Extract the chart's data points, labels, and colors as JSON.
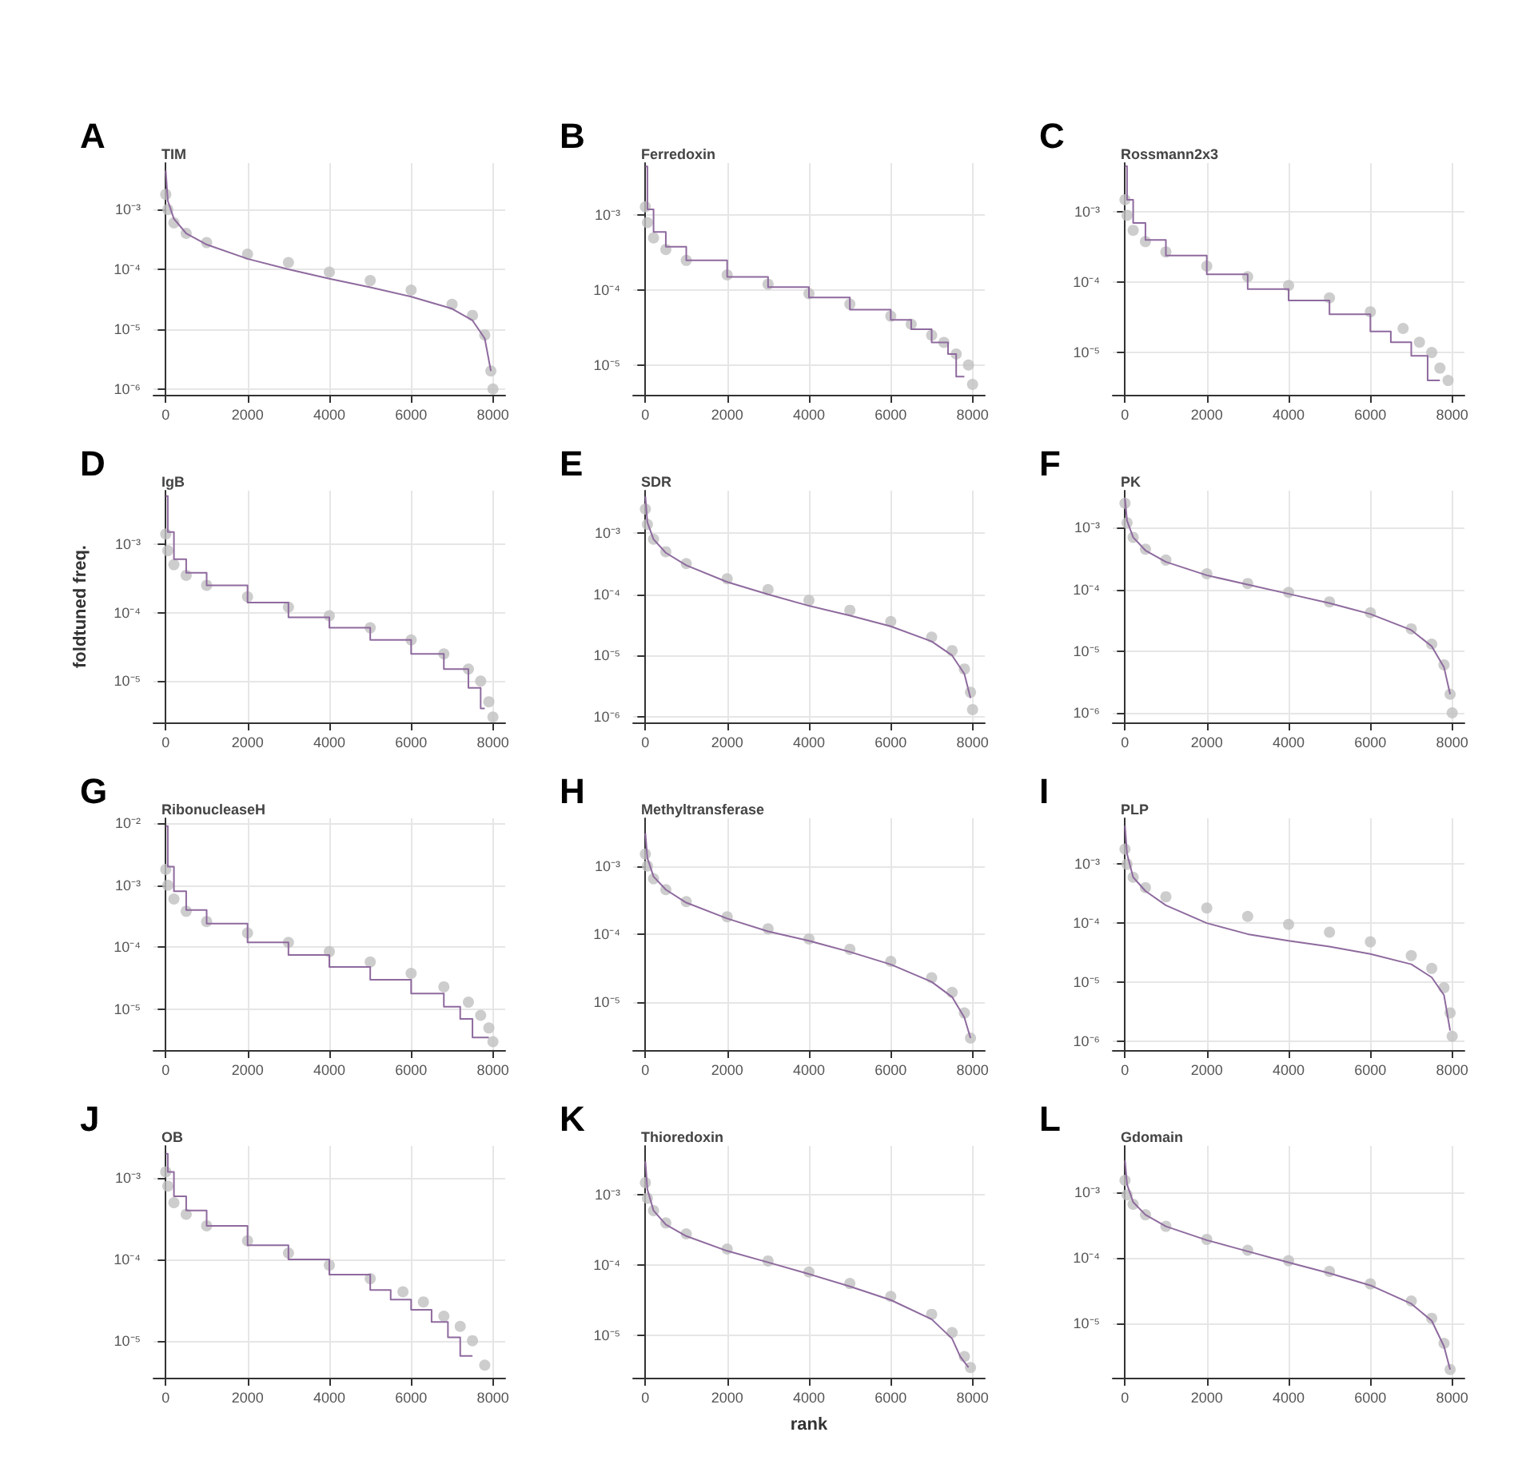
{
  "chart_data": [
    {
      "type": "scatter",
      "title": "TIM",
      "annotations": [
        "A"
      ],
      "xlim": [
        -300,
        8300
      ],
      "xticks": [
        0,
        2000,
        4000,
        6000,
        8000
      ],
      "ylim": [
        8e-07,
        0.006
      ],
      "yticks": [
        {
          "value": 0.001,
          "label": "10⁻³"
        },
        {
          "value": 0.0001,
          "label": "10⁻⁴"
        },
        {
          "value": 1e-05,
          "label": "10⁻⁵"
        },
        {
          "value": 1e-06,
          "label": "10⁻⁶"
        }
      ],
      "log": "y",
      "grid": true,
      "series": [
        {
          "type": "scatter",
          "marker": "circle",
          "color": "#c0c0c0",
          "x": [
            0,
            50,
            200,
            500,
            1000,
            2000,
            3000,
            4000,
            5000,
            6000,
            7000,
            7500,
            7800,
            7950,
            8000
          ],
          "values": [
            0.0018,
            0.001,
            0.0006,
            0.0004,
            0.00028,
            0.00018,
            0.00013,
            9e-05,
            6.5e-05,
            4.5e-05,
            2.6e-05,
            1.7e-05,
            8e-06,
            2e-06,
            1e-06
          ]
        },
        {
          "type": "line",
          "marker": "none",
          "color": "#8e6a9e",
          "x": [
            0,
            50,
            200,
            500,
            1000,
            2000,
            3000,
            4000,
            5000,
            6000,
            7000,
            7500,
            7800,
            7950
          ],
          "values": [
            0.0045,
            0.0014,
            0.0007,
            0.0004,
            0.00026,
            0.00015,
            0.0001,
            7e-05,
            5e-05,
            3.5e-05,
            2.2e-05,
            1.4e-05,
            7e-06,
            2e-06
          ]
        }
      ]
    },
    {
      "type": "scatter",
      "title": "Ferredoxin",
      "annotations": [
        "B"
      ],
      "xlim": [
        -300,
        8300
      ],
      "xticks": [
        0,
        2000,
        4000,
        6000,
        8000
      ],
      "ylim": [
        4e-06,
        0.005
      ],
      "yticks": [
        {
          "value": 0.001,
          "label": "10⁻³"
        },
        {
          "value": 0.0001,
          "label": "10⁻⁴"
        },
        {
          "value": 1e-05,
          "label": "10⁻⁵"
        }
      ],
      "log": "y",
      "grid": true,
      "series": [
        {
          "type": "scatter",
          "marker": "circle",
          "color": "#c0c0c0",
          "x": [
            0,
            50,
            200,
            500,
            1000,
            2000,
            3000,
            4000,
            5000,
            6000,
            6500,
            7000,
            7300,
            7600,
            7900,
            8000
          ],
          "values": [
            0.0013,
            0.0008,
            0.0005,
            0.00035,
            0.00025,
            0.00016,
            0.00012,
            9e-05,
            6.5e-05,
            4.5e-05,
            3.5e-05,
            2.5e-05,
            2e-05,
            1.4e-05,
            1e-05,
            5.5e-06
          ]
        },
        {
          "type": "step",
          "marker": "none",
          "color": "#8e6a9e",
          "x": [
            0,
            50,
            200,
            500,
            1000,
            2000,
            3000,
            4000,
            5000,
            6000,
            6500,
            7000,
            7400,
            7600,
            7800
          ],
          "values": [
            0.0045,
            0.0012,
            0.0006,
            0.00038,
            0.00025,
            0.00015,
            0.00011,
            8e-05,
            5.5e-05,
            4e-05,
            3e-05,
            2e-05,
            1.4e-05,
            7e-06,
            7e-06
          ]
        }
      ]
    },
    {
      "type": "scatter",
      "title": "Rossmann2x3",
      "annotations": [
        "C"
      ],
      "xlim": [
        -300,
        8300
      ],
      "xticks": [
        0,
        2000,
        4000,
        6000,
        8000
      ],
      "ylim": [
        2.5e-06,
        0.005
      ],
      "yticks": [
        {
          "value": 0.001,
          "label": "10⁻³"
        },
        {
          "value": 0.0001,
          "label": "10⁻⁴"
        },
        {
          "value": 1e-05,
          "label": "10⁻⁵"
        }
      ],
      "log": "y",
      "grid": true,
      "series": [
        {
          "type": "scatter",
          "marker": "circle",
          "color": "#c0c0c0",
          "x": [
            0,
            50,
            200,
            500,
            1000,
            2000,
            3000,
            4000,
            5000,
            6000,
            6800,
            7200,
            7500,
            7700,
            7900
          ],
          "values": [
            0.0015,
            0.0009,
            0.00055,
            0.00038,
            0.00027,
            0.00017,
            0.00012,
            9e-05,
            6e-05,
            3.8e-05,
            2.2e-05,
            1.4e-05,
            1e-05,
            6e-06,
            4e-06
          ]
        },
        {
          "type": "step",
          "marker": "none",
          "color": "#8e6a9e",
          "x": [
            0,
            50,
            200,
            500,
            1000,
            2000,
            3000,
            4000,
            5000,
            6000,
            6500,
            7000,
            7400,
            7700
          ],
          "values": [
            0.0045,
            0.0015,
            0.0007,
            0.0004,
            0.00024,
            0.00013,
            8e-05,
            5.5e-05,
            3.5e-05,
            2e-05,
            1.4e-05,
            9e-06,
            4e-06,
            4e-06
          ]
        }
      ]
    },
    {
      "type": "scatter",
      "title": "IgB",
      "ylabel": "foldtuned freq.",
      "annotations": [
        "D"
      ],
      "xlim": [
        -300,
        8300
      ],
      "xticks": [
        0,
        2000,
        4000,
        6000,
        8000
      ],
      "ylim": [
        2.5e-06,
        0.006
      ],
      "yticks": [
        {
          "value": 0.001,
          "label": "10⁻³"
        },
        {
          "value": 0.0001,
          "label": "10⁻⁴"
        },
        {
          "value": 1e-05,
          "label": "10⁻⁵"
        }
      ],
      "log": "y",
      "grid": true,
      "series": [
        {
          "type": "scatter",
          "marker": "circle",
          "color": "#c0c0c0",
          "x": [
            0,
            50,
            200,
            500,
            1000,
            2000,
            3000,
            4000,
            5000,
            6000,
            6800,
            7400,
            7700,
            7900,
            8000
          ],
          "values": [
            0.0014,
            0.0008,
            0.0005,
            0.00035,
            0.00025,
            0.00017,
            0.00012,
            9e-05,
            6e-05,
            4e-05,
            2.5e-05,
            1.5e-05,
            1e-05,
            5e-06,
            3e-06
          ]
        },
        {
          "type": "step",
          "marker": "none",
          "color": "#8e6a9e",
          "x": [
            0,
            50,
            200,
            500,
            1000,
            2000,
            3000,
            4000,
            5000,
            6000,
            6800,
            7400,
            7700,
            7800
          ],
          "values": [
            0.005,
            0.0015,
            0.0006,
            0.00038,
            0.00025,
            0.00014,
            8.5e-05,
            6e-05,
            4e-05,
            2.5e-05,
            1.5e-05,
            8e-06,
            4e-06,
            4e-06
          ]
        }
      ]
    },
    {
      "type": "scatter",
      "title": "SDR",
      "annotations": [
        "E"
      ],
      "xlim": [
        -300,
        8300
      ],
      "xticks": [
        0,
        2000,
        4000,
        6000,
        8000
      ],
      "ylim": [
        8e-07,
        0.005
      ],
      "yticks": [
        {
          "value": 0.001,
          "label": "10⁻³"
        },
        {
          "value": 0.0001,
          "label": "10⁻⁴"
        },
        {
          "value": 1e-05,
          "label": "10⁻⁵"
        },
        {
          "value": 1e-06,
          "label": "10⁻⁶"
        }
      ],
      "log": "y",
      "grid": true,
      "series": [
        {
          "type": "scatter",
          "marker": "circle",
          "color": "#c0c0c0",
          "x": [
            0,
            50,
            200,
            500,
            1000,
            2000,
            3000,
            4000,
            5000,
            6000,
            7000,
            7500,
            7800,
            7950,
            8000
          ],
          "values": [
            0.0025,
            0.0014,
            0.0008,
            0.0005,
            0.00032,
            0.00018,
            0.00012,
            8e-05,
            5.5e-05,
            3.6e-05,
            2e-05,
            1.2e-05,
            6e-06,
            2.5e-06,
            1.3e-06
          ]
        },
        {
          "type": "line",
          "marker": "none",
          "color": "#8e6a9e",
          "x": [
            0,
            50,
            200,
            500,
            1000,
            2000,
            3000,
            4000,
            5000,
            6000,
            7000,
            7500,
            7800,
            7950
          ],
          "values": [
            0.004,
            0.0015,
            0.0008,
            0.00048,
            0.0003,
            0.00016,
            0.0001,
            6.5e-05,
            4.5e-05,
            3e-05,
            1.7e-05,
            1e-05,
            5e-06,
            2e-06
          ]
        }
      ]
    },
    {
      "type": "scatter",
      "title": "PK",
      "annotations": [
        "F"
      ],
      "xlim": [
        -300,
        8300
      ],
      "xticks": [
        0,
        2000,
        4000,
        6000,
        8000
      ],
      "ylim": [
        7e-07,
        0.004
      ],
      "yticks": [
        {
          "value": 0.001,
          "label": "10⁻³"
        },
        {
          "value": 0.0001,
          "label": "10⁻⁴"
        },
        {
          "value": 1e-05,
          "label": "10⁻⁵"
        },
        {
          "value": 1e-06,
          "label": "10⁻⁶"
        }
      ],
      "log": "y",
      "grid": true,
      "series": [
        {
          "type": "scatter",
          "marker": "circle",
          "color": "#c0c0c0",
          "x": [
            0,
            50,
            200,
            500,
            1000,
            2000,
            3000,
            4000,
            5000,
            6000,
            7000,
            7500,
            7800,
            7950,
            8000
          ],
          "values": [
            0.0025,
            0.0012,
            0.0007,
            0.00045,
            0.0003,
            0.00018,
            0.000125,
            9e-05,
            6.3e-05,
            4.2e-05,
            2.3e-05,
            1.3e-05,
            6e-06,
            2e-06,
            1e-06
          ]
        },
        {
          "type": "line",
          "marker": "none",
          "color": "#8e6a9e",
          "x": [
            0,
            50,
            200,
            500,
            1000,
            2000,
            3000,
            4000,
            5000,
            6000,
            7000,
            7500,
            7800,
            7950
          ],
          "values": [
            0.003,
            0.0013,
            0.0007,
            0.00043,
            0.00028,
            0.00017,
            0.00012,
            8.5e-05,
            6e-05,
            4e-05,
            2.2e-05,
            1.2e-05,
            5.5e-06,
            2e-06
          ]
        }
      ]
    },
    {
      "type": "scatter",
      "title": "RibonucleaseH",
      "annotations": [
        "G"
      ],
      "xlim": [
        -300,
        8300
      ],
      "xticks": [
        0,
        2000,
        4000,
        6000,
        8000
      ],
      "ylim": [
        2.2e-06,
        0.012
      ],
      "yticks": [
        {
          "value": 0.01,
          "label": "10⁻²"
        },
        {
          "value": 0.001,
          "label": "10⁻³"
        },
        {
          "value": 0.0001,
          "label": "10⁻⁴"
        },
        {
          "value": 1e-05,
          "label": "10⁻⁵"
        }
      ],
      "log": "y",
      "grid": true,
      "series": [
        {
          "type": "scatter",
          "marker": "circle",
          "color": "#c0c0c0",
          "x": [
            0,
            50,
            200,
            500,
            1000,
            2000,
            3000,
            4000,
            5000,
            6000,
            6800,
            7400,
            7700,
            7900,
            8000
          ],
          "values": [
            0.0018,
            0.001,
            0.0006,
            0.00038,
            0.00026,
            0.00017,
            0.00012,
            8.5e-05,
            5.8e-05,
            3.8e-05,
            2.3e-05,
            1.3e-05,
            8e-06,
            5e-06,
            3e-06
          ]
        },
        {
          "type": "step",
          "marker": "none",
          "color": "#8e6a9e",
          "x": [
            0,
            50,
            200,
            500,
            1000,
            2000,
            3000,
            4000,
            5000,
            6000,
            6800,
            7200,
            7500,
            7900
          ],
          "values": [
            0.009,
            0.002,
            0.0008,
            0.0004,
            0.00024,
            0.00012,
            7.5e-05,
            4.8e-05,
            3e-05,
            1.8e-05,
            1.1e-05,
            7e-06,
            3.5e-06,
            3.5e-06
          ]
        }
      ]
    },
    {
      "type": "scatter",
      "title": "Methyltransferase",
      "annotations": [
        "H"
      ],
      "xlim": [
        -300,
        8300
      ],
      "xticks": [
        0,
        2000,
        4000,
        6000,
        8000
      ],
      "ylim": [
        2e-06,
        0.005
      ],
      "yticks": [
        {
          "value": 0.001,
          "label": "10⁻³"
        },
        {
          "value": 0.0001,
          "label": "10⁻⁴"
        },
        {
          "value": 1e-05,
          "label": "10⁻⁵"
        }
      ],
      "log": "y",
      "grid": true,
      "series": [
        {
          "type": "scatter",
          "marker": "circle",
          "color": "#c0c0c0",
          "x": [
            0,
            50,
            200,
            500,
            1000,
            2000,
            3000,
            4000,
            5000,
            6000,
            7000,
            7500,
            7800,
            7950
          ],
          "values": [
            0.0015,
            0.001,
            0.00065,
            0.00045,
            0.0003,
            0.00018,
            0.00012,
            8.5e-05,
            6e-05,
            4e-05,
            2.3e-05,
            1.4e-05,
            7e-06,
            3e-06
          ]
        },
        {
          "type": "line",
          "marker": "none",
          "color": "#8e6a9e",
          "x": [
            0,
            50,
            200,
            500,
            1000,
            2000,
            3000,
            4000,
            5000,
            6000,
            7000,
            7500,
            7800,
            7950
          ],
          "values": [
            0.003,
            0.0013,
            0.0007,
            0.00045,
            0.00029,
            0.00017,
            0.00011,
            8e-05,
            5.5e-05,
            3.6e-05,
            2e-05,
            1.2e-05,
            6e-06,
            3e-06
          ]
        }
      ]
    },
    {
      "type": "scatter",
      "title": "PLP",
      "annotations": [
        "I"
      ],
      "xlim": [
        -300,
        8300
      ],
      "xticks": [
        0,
        2000,
        4000,
        6000,
        8000
      ],
      "ylim": [
        7e-07,
        0.006
      ],
      "yticks": [
        {
          "value": 0.001,
          "label": "10⁻³"
        },
        {
          "value": 0.0001,
          "label": "10⁻⁴"
        },
        {
          "value": 1e-05,
          "label": "10⁻⁵"
        },
        {
          "value": 1e-06,
          "label": "10⁻⁶"
        }
      ],
      "log": "y",
      "grid": true,
      "series": [
        {
          "type": "scatter",
          "marker": "circle",
          "color": "#c0c0c0",
          "x": [
            0,
            50,
            200,
            500,
            1000,
            2000,
            3000,
            4000,
            5000,
            6000,
            7000,
            7500,
            7800,
            7950,
            8000
          ],
          "values": [
            0.0018,
            0.001,
            0.0006,
            0.0004,
            0.00028,
            0.00018,
            0.00013,
            9.5e-05,
            7e-05,
            4.8e-05,
            2.8e-05,
            1.7e-05,
            8e-06,
            3e-06,
            1.2e-06
          ]
        },
        {
          "type": "line",
          "marker": "none",
          "color": "#8e6a9e",
          "x": [
            0,
            50,
            200,
            500,
            1000,
            2000,
            3000,
            4000,
            5000,
            6000,
            7000,
            7500,
            7800,
            7950
          ],
          "values": [
            0.0045,
            0.0015,
            0.0006,
            0.00035,
            0.0002,
            0.0001,
            6.5e-05,
            5e-05,
            4e-05,
            3e-05,
            2e-05,
            1.2e-05,
            6e-06,
            1.5e-06
          ]
        }
      ]
    },
    {
      "type": "scatter",
      "title": "OB",
      "annotations": [
        "J"
      ],
      "xlim": [
        -300,
        8300
      ],
      "xticks": [
        0,
        2000,
        4000,
        6000,
        8000
      ],
      "ylim": [
        3.5e-06,
        0.0025
      ],
      "yticks": [
        {
          "value": 0.001,
          "label": "10⁻³"
        },
        {
          "value": 0.0001,
          "label": "10⁻⁴"
        },
        {
          "value": 1e-05,
          "label": "10⁻⁵"
        }
      ],
      "log": "y",
      "grid": true,
      "series": [
        {
          "type": "scatter",
          "marker": "circle",
          "color": "#c0c0c0",
          "x": [
            0,
            50,
            200,
            500,
            1000,
            2000,
            3000,
            4000,
            5000,
            5800,
            6300,
            6800,
            7200,
            7500,
            7800
          ],
          "values": [
            0.0012,
            0.0008,
            0.0005,
            0.00036,
            0.00026,
            0.00017,
            0.00012,
            8.5e-05,
            5.8e-05,
            4e-05,
            3e-05,
            2e-05,
            1.5e-05,
            1e-05,
            5e-06
          ]
        },
        {
          "type": "step",
          "marker": "none",
          "color": "#8e6a9e",
          "x": [
            0,
            50,
            200,
            500,
            1000,
            2000,
            3000,
            4000,
            5000,
            5500,
            6000,
            6500,
            6900,
            7200,
            7500
          ],
          "values": [
            0.002,
            0.0012,
            0.0006,
            0.0004,
            0.00026,
            0.00015,
            0.0001,
            6.5e-05,
            4.2e-05,
            3.2e-05,
            2.4e-05,
            1.7e-05,
            1.1e-05,
            6.5e-06,
            6.5e-06
          ]
        }
      ]
    },
    {
      "type": "scatter",
      "title": "Thioredoxin",
      "xlabel": "rank",
      "annotations": [
        "K"
      ],
      "xlim": [
        -300,
        8300
      ],
      "xticks": [
        0,
        2000,
        4000,
        6000,
        8000
      ],
      "ylim": [
        2.5e-06,
        0.005
      ],
      "yticks": [
        {
          "value": 0.001,
          "label": "10⁻³"
        },
        {
          "value": 0.0001,
          "label": "10⁻⁴"
        },
        {
          "value": 1e-05,
          "label": "10⁻⁵"
        }
      ],
      "log": "y",
      "grid": true,
      "series": [
        {
          "type": "scatter",
          "marker": "circle",
          "color": "#c0c0c0",
          "x": [
            0,
            50,
            200,
            500,
            1000,
            2000,
            3000,
            4000,
            5000,
            6000,
            7000,
            7500,
            7800,
            7950
          ],
          "values": [
            0.0015,
            0.0009,
            0.0006,
            0.0004,
            0.00028,
            0.00017,
            0.000115,
            8e-05,
            5.5e-05,
            3.6e-05,
            2e-05,
            1.1e-05,
            5e-06,
            3.5e-06
          ]
        },
        {
          "type": "line",
          "marker": "none",
          "color": "#8e6a9e",
          "x": [
            0,
            50,
            200,
            500,
            1000,
            2000,
            3000,
            4000,
            5000,
            6000,
            7000,
            7500,
            7700,
            7900
          ],
          "values": [
            0.003,
            0.0012,
            0.0006,
            0.00038,
            0.00026,
            0.00016,
            0.00011,
            7.5e-05,
            5e-05,
            3.2e-05,
            1.7e-05,
            9e-06,
            5e-06,
            3.5e-06
          ]
        }
      ]
    },
    {
      "type": "scatter",
      "title": "Gdomain",
      "annotations": [
        "L"
      ],
      "xlim": [
        -300,
        8300
      ],
      "xticks": [
        0,
        2000,
        4000,
        6000,
        8000
      ],
      "ylim": [
        1.5e-06,
        0.005
      ],
      "yticks": [
        {
          "value": 0.001,
          "label": "10⁻³"
        },
        {
          "value": 0.0001,
          "label": "10⁻⁴"
        },
        {
          "value": 1e-05,
          "label": "10⁻⁵"
        }
      ],
      "log": "y",
      "grid": true,
      "series": [
        {
          "type": "scatter",
          "marker": "circle",
          "color": "#c0c0c0",
          "x": [
            0,
            50,
            200,
            500,
            1000,
            2000,
            3000,
            4000,
            5000,
            6000,
            7000,
            7500,
            7800,
            7950
          ],
          "values": [
            0.0015,
            0.0009,
            0.00065,
            0.00045,
            0.0003,
            0.00019,
            0.00013,
            9e-05,
            6.2e-05,
            4e-05,
            2.2e-05,
            1.2e-05,
            5e-06,
            2e-06
          ]
        },
        {
          "type": "line",
          "marker": "none",
          "color": "#8e6a9e",
          "x": [
            0,
            50,
            200,
            500,
            1000,
            2000,
            3000,
            4000,
            5000,
            6000,
            7000,
            7500,
            7800,
            7950
          ],
          "values": [
            0.003,
            0.0013,
            0.0007,
            0.00045,
            0.0003,
            0.000185,
            0.000125,
            8.5e-05,
            5.8e-05,
            3.8e-05,
            2e-05,
            1.1e-05,
            4.5e-06,
            2e-06
          ]
        }
      ]
    }
  ]
}
